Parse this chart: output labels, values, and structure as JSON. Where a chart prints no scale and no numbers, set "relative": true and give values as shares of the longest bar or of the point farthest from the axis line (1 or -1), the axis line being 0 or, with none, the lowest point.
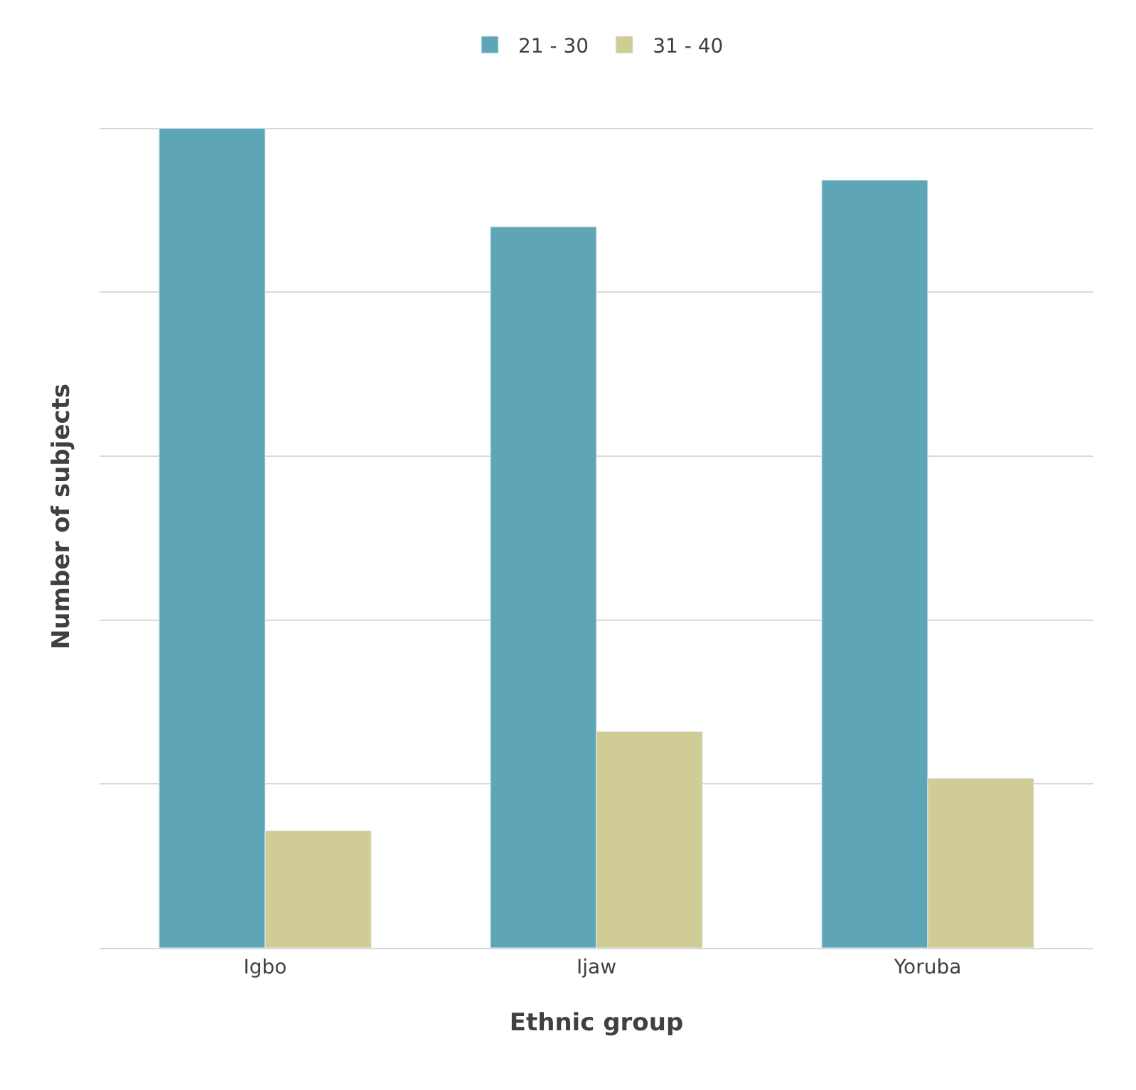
{
  "chart_data": {
    "type": "bar",
    "relative": true,
    "categories": [
      "Igbo",
      "Ijaw",
      "Yoruba"
    ],
    "series": [
      {
        "name": "21 - 30",
        "color": "#5ea6b6",
        "values": [
          1,
          0.88,
          0.937
        ]
      },
      {
        "name": "31 - 40",
        "color": "#cfcc96",
        "values": [
          0.143,
          0.264,
          0.207
        ]
      }
    ],
    "xlabel": "Ethnic group",
    "ylabel": "Number of subjects",
    "grid": "y",
    "legend": "top"
  }
}
